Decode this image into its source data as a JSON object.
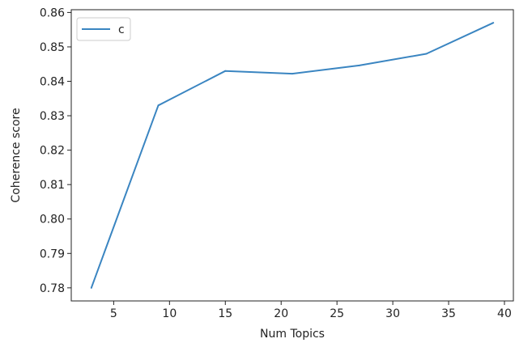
{
  "chart_data": {
    "type": "line",
    "title": "",
    "xlabel": "Num Topics",
    "ylabel": "Coherence score",
    "xlim": [
      1.2,
      40.8
    ],
    "ylim": [
      0.7762,
      0.8608
    ],
    "xticks": [
      5,
      10,
      15,
      20,
      25,
      30,
      35,
      40
    ],
    "xtick_labels": [
      "5",
      "10",
      "15",
      "20",
      "25",
      "30",
      "35",
      "40"
    ],
    "yticks": [
      0.78,
      0.79,
      0.8,
      0.81,
      0.82,
      0.83,
      0.84,
      0.85,
      0.86
    ],
    "ytick_labels": [
      "0.78",
      "0.79",
      "0.80",
      "0.81",
      "0.82",
      "0.83",
      "0.84",
      "0.85",
      "0.86"
    ],
    "grid": false,
    "legend": {
      "position": "top-left",
      "entries": [
        "c"
      ]
    },
    "series": [
      {
        "name": "c",
        "color": "#3a85c1",
        "x": [
          3,
          9,
          15,
          21,
          27,
          33,
          39
        ],
        "y": [
          0.78,
          0.833,
          0.843,
          0.8422,
          0.8446,
          0.848,
          0.857
        ]
      }
    ]
  }
}
